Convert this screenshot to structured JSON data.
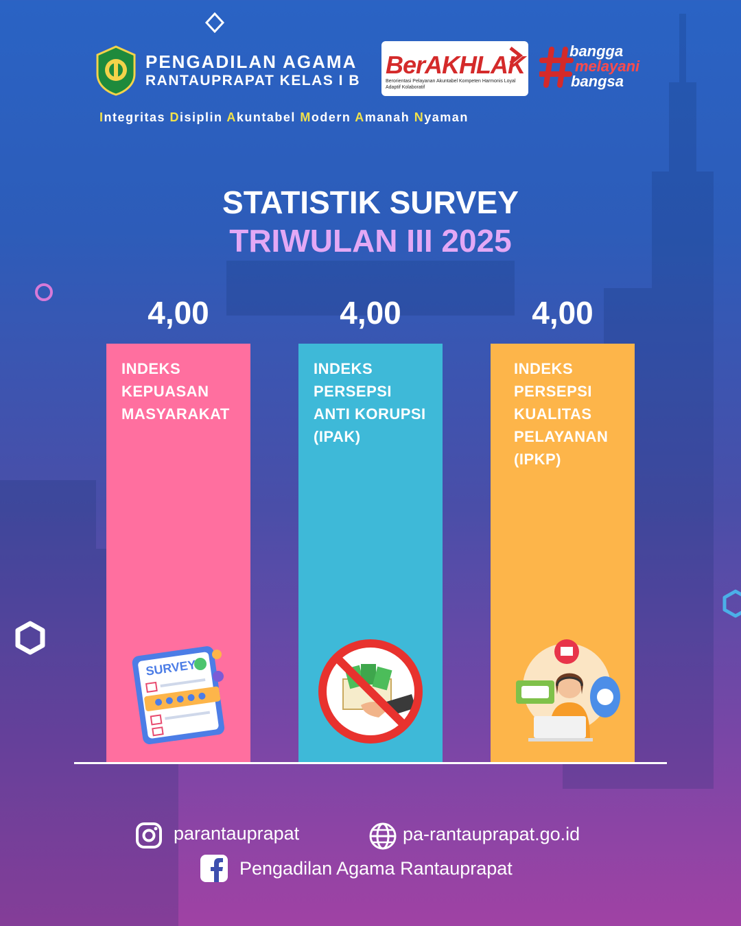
{
  "header": {
    "court_line1": "PENGADILAN AGAMA",
    "court_line2": "RANTAUPRAPAT KELAS I B",
    "berakhlak_main": "BerAKHLAK",
    "berakhlak_sub": "Berorientasi Pelayanan Akuntabel Kompeten Harmonis Loyal Adaptif Kolaboratif",
    "bangga_1": "bangga",
    "bangga_2": "melayani",
    "bangga_3": "bangsa",
    "motto": [
      {
        "k": "I",
        "r": "ntegritas "
      },
      {
        "k": "D",
        "r": "isiplin "
      },
      {
        "k": "A",
        "r": "kuntabel "
      },
      {
        "k": "M",
        "r": "odern "
      },
      {
        "k": "A",
        "r": "manah "
      },
      {
        "k": "N",
        "r": "yaman"
      }
    ]
  },
  "title_line1": "STATISTIK SURVEY",
  "title_line2": "TRIWULAN III 2025",
  "chart_data": {
    "type": "bar",
    "categories": [
      "INDEKS\nKEPUASAN\nMASYARAKAT",
      "INDEKS\nPERSEPSI\nANTI KORUPSI\n(IPAK)",
      "INDEKS\nPERSEPSI\nKUALITAS\nPELAYANAN\n(IPKP)"
    ],
    "values": [
      4.0,
      4.0,
      4.0
    ],
    "value_labels": [
      "4,00",
      "4,00",
      "4,00"
    ],
    "colors": [
      "#ff6f9f",
      "#3eb9d8",
      "#fdb54a"
    ],
    "grid": false
  },
  "illustrations": {
    "survey_text": "SURVEY"
  },
  "contacts": {
    "instagram": "parantauprapat",
    "website": "pa-rantauprapat.go.id",
    "facebook": "Pengadilan Agama Rantauprapat"
  },
  "icons": [
    "instagram-icon",
    "globe-icon",
    "facebook-icon",
    "court-logo-icon"
  ]
}
